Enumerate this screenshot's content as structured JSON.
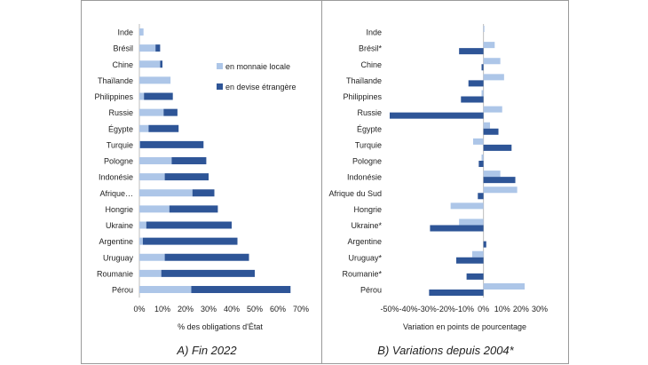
{
  "chart_data": [
    {
      "type": "bar",
      "orientation": "horizontal",
      "stacked": true,
      "title": "A) Fin 2022",
      "xlabel": "% des obligations d'État",
      "ylabel": "",
      "xlim": [
        0,
        70
      ],
      "xticks": [
        "0%",
        "10%",
        "20%",
        "30%",
        "40%",
        "50%",
        "60%",
        "70%"
      ],
      "legend_position": "top-right",
      "colors": {
        "local": "#adc6e8",
        "foreign": "#2e5597"
      },
      "categories": [
        "Inde",
        "Brésil",
        "Chine",
        "Thaïlande",
        "Philippines",
        "Russie",
        "Égypte",
        "Turquie",
        "Pologne",
        "Indonésie",
        "Afrique…",
        "Hongrie",
        "Ukraine",
        "Argentine",
        "Uruguay",
        "Roumanie",
        "Pérou"
      ],
      "series": [
        {
          "name": "en monnaie locale",
          "values": [
            1.8,
            7,
            9,
            13.5,
            2,
            10.5,
            4,
            0.3,
            14,
            11,
            23,
            13,
            3,
            1.5,
            11,
            9.5,
            22.5
          ]
        },
        {
          "name": "en devise étrangère",
          "values": [
            0,
            2,
            1,
            0,
            12.5,
            6,
            13,
            27.5,
            15,
            19,
            9.5,
            21,
            37,
            41,
            36.5,
            40.5,
            43
          ]
        }
      ]
    },
    {
      "type": "bar",
      "orientation": "horizontal",
      "title": "B) Variations depuis 2004*",
      "xlabel": "Variation en points de pourcentage",
      "ylabel": "",
      "xlim": [
        -50,
        30
      ],
      "xticks": [
        "-50%",
        "-40%",
        "-30%",
        "-20%",
        "-10%",
        "0%",
        "10%",
        "20%",
        "30%"
      ],
      "colors": {
        "local": "#adc6e8",
        "foreign": "#2e5597"
      },
      "categories": [
        "Inde",
        "Brésil*",
        "Chine",
        "Thaïlande",
        "Philippines",
        "Russie",
        "Égypte",
        "Turquie",
        "Pologne",
        "Indonésie",
        "Afrique du Sud",
        "Hongrie",
        "Ukraine*",
        "Argentine",
        "Uruguay*",
        "Roumanie*",
        "Pérou"
      ],
      "series": [
        {
          "name": "en monnaie locale",
          "values": [
            0.5,
            6,
            9,
            11,
            -1,
            10,
            3.5,
            -5.5,
            -1,
            9,
            18,
            -17.5,
            -13,
            0,
            -6,
            0,
            22
          ]
        },
        {
          "name": "en devise étrangère",
          "values": [
            0,
            -13,
            -1,
            -8,
            -12,
            -50,
            8,
            15,
            -2.5,
            17,
            -3,
            0,
            -28.5,
            1.5,
            -14.5,
            -9,
            -29
          ]
        }
      ]
    }
  ]
}
